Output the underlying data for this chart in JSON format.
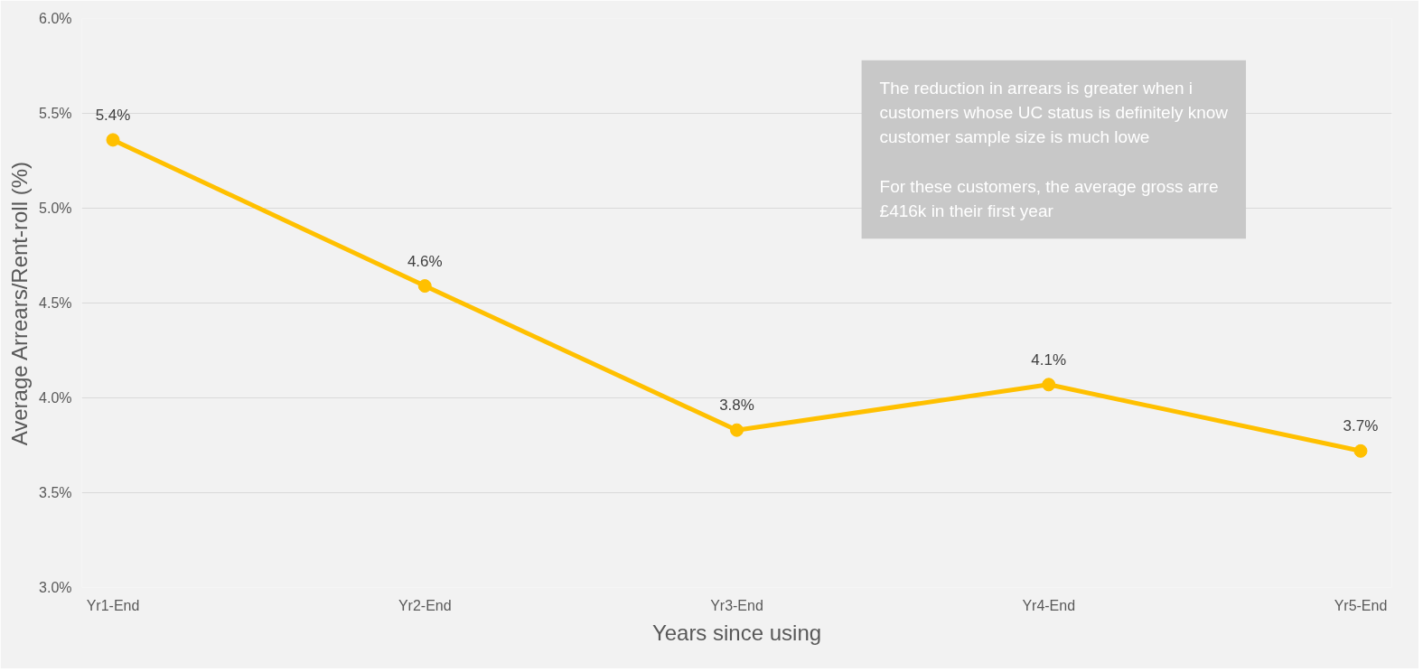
{
  "chart_data": {
    "type": "line",
    "xlabel": "Years since using",
    "ylabel": "Average Arrears/Rent-roll (%)",
    "categories": [
      "Yr1-End",
      "Yr2-End",
      "Yr3-End",
      "Yr4-End",
      "Yr5-End"
    ],
    "series": [
      {
        "color": "#ffc000",
        "values": [
          5.36,
          4.59,
          3.83,
          4.07,
          3.72
        ],
        "value_labels": [
          "5.4%",
          "4.6%",
          "3.8%",
          "4.1%",
          "3.7%"
        ]
      }
    ],
    "ylim": [
      3.0,
      6.0
    ],
    "yticks": [
      {
        "value": 3.0,
        "label": "3.0%"
      },
      {
        "value": 3.5,
        "label": "3.5%"
      },
      {
        "value": 4.0,
        "label": "4.0%"
      },
      {
        "value": 4.5,
        "label": "4.5%"
      },
      {
        "value": 5.0,
        "label": "5.0%"
      },
      {
        "value": 5.5,
        "label": "5.5%"
      },
      {
        "value": 6.0,
        "label": "6.0%"
      }
    ],
    "grid": "y",
    "marker": "circle",
    "line_style": "solid",
    "annotations": [
      "The reduction in arrears is greater when i\ncustomers whose UC status is definitely know\ncustomer sample size is much lowe\n\nFor these customers, the average gross arre\n£416k in their first year"
    ]
  }
}
